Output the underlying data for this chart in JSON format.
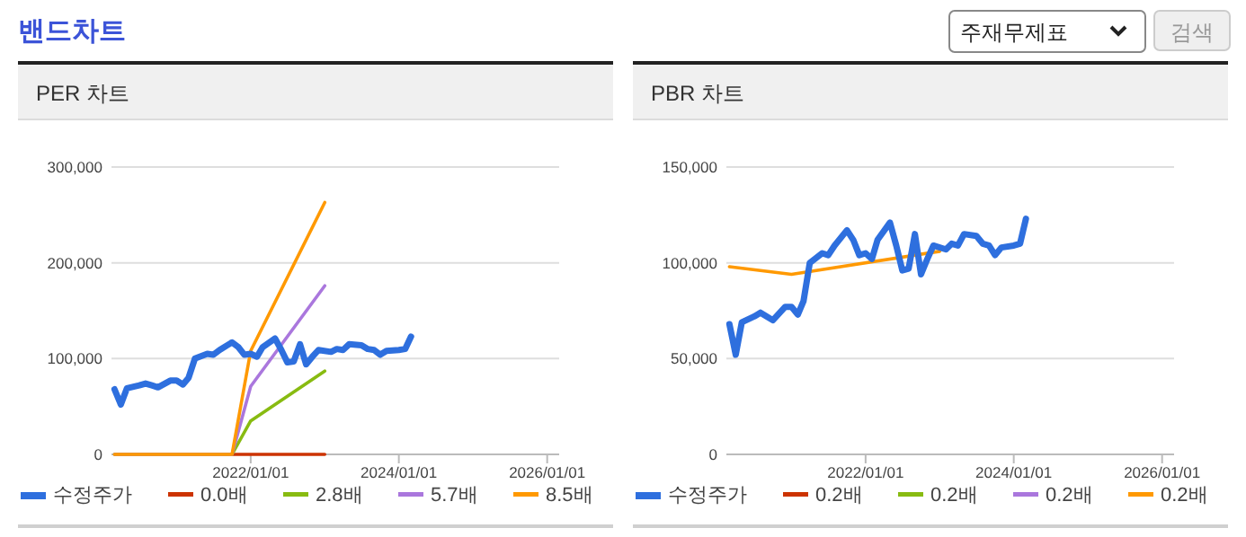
{
  "chart_data": [
    {
      "type": "line",
      "title": "PER 차트",
      "annotations": [
        "밴드차트"
      ],
      "xlim": [
        "2020-02-15",
        "2026-03-01"
      ],
      "ylim": [
        0,
        300000
      ],
      "xticks": [
        {
          "value": "2022-01-01",
          "label": "2022/01/01"
        },
        {
          "value": "2024-01-01",
          "label": "2024/01/01"
        },
        {
          "value": "2026-01-01",
          "label": "2026/01/01"
        }
      ],
      "yticks": [
        0,
        {
          "value": 100000,
          "label": "100,000"
        },
        {
          "value": 200000,
          "label": "200,000"
        },
        {
          "value": 300000,
          "label": "300,000"
        }
      ],
      "grid": "y",
      "legend": "bottom",
      "line_style": "solid",
      "series": [
        {
          "name": "수정주가",
          "color": "#2e6fde",
          "x": [
            "2020-03",
            "2020-04",
            "2020-05",
            "2020-07",
            "2020-08",
            "2020-09",
            "2020-10",
            "2020-12",
            "2021-01",
            "2021-02",
            "2021-03",
            "2021-04",
            "2021-06",
            "2021-07",
            "2021-08",
            "2021-10",
            "2021-11",
            "2021-12",
            "2022-01",
            "2022-02",
            "2022-03",
            "2022-05",
            "2022-06",
            "2022-07",
            "2022-08",
            "2022-09",
            "2022-10",
            "2022-11",
            "2022-12",
            "2023-02",
            "2023-03",
            "2023-04",
            "2023-05",
            "2023-07",
            "2023-08",
            "2023-09",
            "2023-10",
            "2023-11",
            "2024-01",
            "2024-02",
            "2024-03"
          ],
          "values": [
            68000,
            52000,
            69000,
            72000,
            74000,
            72000,
            70000,
            77000,
            77000,
            73000,
            80000,
            100000,
            105000,
            104000,
            109000,
            117000,
            112000,
            104000,
            105000,
            102000,
            112000,
            121000,
            109000,
            96000,
            97000,
            115000,
            94000,
            102000,
            109000,
            107000,
            110000,
            109000,
            115000,
            114000,
            110000,
            109000,
            104000,
            108000,
            109000,
            110000,
            123000
          ]
        },
        {
          "name": "0.0배",
          "color": "#cc3300",
          "x": [
            "2021-10",
            "2022-01",
            "2023-01"
          ],
          "values": [
            0,
            0,
            0
          ]
        },
        {
          "name": "2.8배",
          "color": "#88bb11",
          "x": [
            "2020-03",
            "2021-10",
            "2022-01",
            "2023-01"
          ],
          "values": [
            0,
            0,
            35000,
            87000
          ]
        },
        {
          "name": "5.7배",
          "color": "#aa77dd",
          "x": [
            "2020-03",
            "2021-10",
            "2022-01",
            "2023-01"
          ],
          "values": [
            0,
            0,
            71000,
            176000
          ]
        },
        {
          "name": "8.5배",
          "color": "#ff9900",
          "x": [
            "2020-03",
            "2021-10",
            "2022-01",
            "2023-01"
          ],
          "values": [
            0,
            0,
            108000,
            263000
          ]
        }
      ]
    },
    {
      "type": "line",
      "title": "PBR 차트",
      "annotations": [
        "주재무제표",
        "검색"
      ],
      "xlim": [
        "2020-02-15",
        "2026-03-01"
      ],
      "ylim": [
        0,
        150000
      ],
      "xticks": [
        {
          "value": "2022-01-01",
          "label": "2022/01/01"
        },
        {
          "value": "2024-01-01",
          "label": "2024/01/01"
        },
        {
          "value": "2026-01-01",
          "label": "2026/01/01"
        }
      ],
      "yticks": [
        0,
        {
          "value": 50000,
          "label": "50,000"
        },
        {
          "value": 100000,
          "label": "100,000"
        },
        {
          "value": 150000,
          "label": "150,000"
        }
      ],
      "grid": "y",
      "legend": "bottom",
      "line_style": "solid",
      "series": [
        {
          "name": "수정주가",
          "color": "#2e6fde",
          "x": [
            "2020-03",
            "2020-04",
            "2020-05",
            "2020-07",
            "2020-08",
            "2020-09",
            "2020-10",
            "2020-12",
            "2021-01",
            "2021-02",
            "2021-03",
            "2021-04",
            "2021-06",
            "2021-07",
            "2021-08",
            "2021-10",
            "2021-11",
            "2021-12",
            "2022-01",
            "2022-02",
            "2022-03",
            "2022-05",
            "2022-06",
            "2022-07",
            "2022-08",
            "2022-09",
            "2022-10",
            "2022-11",
            "2022-12",
            "2023-02",
            "2023-03",
            "2023-04",
            "2023-05",
            "2023-07",
            "2023-08",
            "2023-09",
            "2023-10",
            "2023-11",
            "2024-01",
            "2024-02",
            "2024-03"
          ],
          "values": [
            68000,
            52000,
            69000,
            72000,
            74000,
            72000,
            70000,
            77000,
            77000,
            73000,
            80000,
            100000,
            105000,
            104000,
            109000,
            117000,
            112000,
            104000,
            105000,
            102000,
            112000,
            121000,
            109000,
            96000,
            97000,
            115000,
            94000,
            102000,
            109000,
            107000,
            110000,
            109000,
            115000,
            114000,
            110000,
            109000,
            104000,
            108000,
            109000,
            110000,
            123000
          ]
        },
        {
          "name": "0.2배",
          "color": "#cc3300"
        },
        {
          "name": "0.2배",
          "color": "#88bb11"
        },
        {
          "name": "0.2배",
          "color": "#aa77dd"
        },
        {
          "name": "0.2배",
          "color": "#ff9900",
          "x": [
            "2020-03",
            "2021-01",
            "2023-01"
          ],
          "values": [
            98000,
            94000,
            106000
          ]
        }
      ]
    }
  ]
}
